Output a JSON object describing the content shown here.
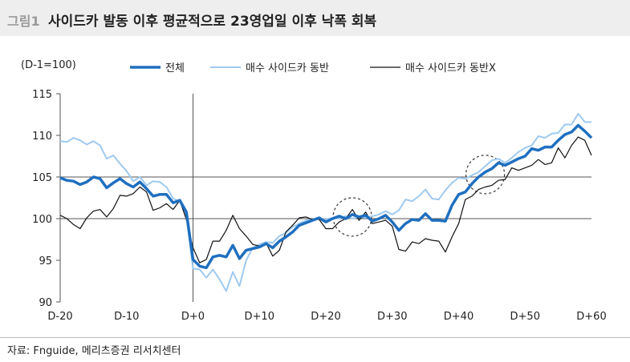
{
  "header": {
    "figure_number": "그림1",
    "title": "사이드카 발동 이후 평균적으로 23영업일 이후 낙폭 회복"
  },
  "source": "자료: Fnguide, 메리츠증권 리서치센터",
  "chart_data": {
    "type": "line",
    "unit_label": "(D-1=100)",
    "xlabel": "",
    "ylabel": "",
    "xlim": [
      -20,
      60
    ],
    "ylim": [
      90,
      115
    ],
    "yticks": [
      90,
      95,
      100,
      105,
      110,
      115
    ],
    "xticks": [
      {
        "value": -20,
        "label": "D-20"
      },
      {
        "value": -10,
        "label": "D-10"
      },
      {
        "value": 0,
        "label": "D+0"
      },
      {
        "value": 10,
        "label": "D+10"
      },
      {
        "value": 20,
        "label": "D+20"
      },
      {
        "value": 30,
        "label": "D+30"
      },
      {
        "value": 40,
        "label": "D+40"
      },
      {
        "value": 50,
        "label": "D+50"
      },
      {
        "value": 60,
        "label": "D+60"
      }
    ],
    "reference_lines": [
      {
        "axis": "y",
        "value": 100
      },
      {
        "axis": "y",
        "value": 105
      },
      {
        "axis": "x",
        "value": 0
      }
    ],
    "legend_position": "top",
    "series": [
      {
        "name": "전체",
        "color": "#1f6fbf",
        "x": [
          -20,
          -19,
          -18,
          -17,
          -16,
          -15,
          -14,
          -13,
          -12,
          -11,
          -10,
          -9,
          -8,
          -7,
          -6,
          -5,
          -4,
          -3,
          -2,
          -1,
          0,
          1,
          2,
          3,
          4,
          5,
          6,
          7,
          8,
          9,
          10,
          11,
          12,
          13,
          14,
          15,
          16,
          17,
          18,
          19,
          20,
          21,
          22,
          23,
          24,
          25,
          26,
          27,
          28,
          29,
          30,
          31,
          32,
          33,
          34,
          35,
          36,
          37,
          38,
          39,
          40,
          41,
          42,
          43,
          44,
          45,
          46,
          47,
          48,
          49,
          50,
          51,
          52,
          53,
          54,
          55,
          56,
          57,
          58,
          59,
          60
        ],
        "values": [
          104.9,
          104.6,
          104.5,
          104.1,
          104.4,
          105.0,
          104.8,
          103.7,
          104.3,
          104.8,
          104.2,
          103.8,
          104.4,
          103.6,
          102.7,
          102.9,
          102.9,
          101.9,
          102.2,
          100.8,
          95.1,
          94.3,
          94.1,
          95.4,
          95.6,
          95.4,
          96.8,
          95.2,
          96.2,
          96.4,
          96.6,
          97.0,
          96.5,
          97.3,
          97.8,
          98.4,
          99.2,
          99.5,
          99.8,
          100.1,
          99.6,
          100.0,
          100.3,
          100.0,
          100.5,
          100.2,
          100.4,
          99.7,
          100.0,
          100.4,
          99.6,
          98.6,
          99.4,
          99.9,
          99.8,
          100.6,
          99.8,
          99.8,
          99.7,
          101.6,
          102.9,
          103.2,
          104.2,
          105.0,
          105.6,
          106.0,
          106.7,
          106.4,
          106.8,
          107.2,
          107.5,
          108.4,
          108.2,
          108.6,
          108.6,
          109.4,
          110.1,
          110.4,
          111.2,
          110.5,
          109.7
        ]
      },
      {
        "name": "매수 사이드카 동반",
        "color": "#9fcaf0",
        "x": [
          -20,
          -19,
          -18,
          -17,
          -16,
          -15,
          -14,
          -13,
          -12,
          -11,
          -10,
          -9,
          -8,
          -7,
          -6,
          -5,
          -4,
          -3,
          -2,
          -1,
          0,
          1,
          2,
          3,
          4,
          5,
          6,
          7,
          8,
          9,
          10,
          11,
          12,
          13,
          14,
          15,
          16,
          17,
          18,
          19,
          20,
          21,
          22,
          23,
          24,
          25,
          26,
          27,
          28,
          29,
          30,
          31,
          32,
          33,
          34,
          35,
          36,
          37,
          38,
          39,
          40,
          41,
          42,
          43,
          44,
          45,
          46,
          47,
          48,
          49,
          50,
          51,
          52,
          53,
          54,
          55,
          56,
          57,
          58,
          59,
          60
        ],
        "values": [
          109.3,
          109.2,
          109.7,
          109.4,
          108.9,
          109.3,
          108.8,
          107.2,
          107.6,
          106.6,
          105.7,
          104.5,
          105.0,
          104.0,
          104.5,
          104.4,
          103.8,
          102.4,
          102.1,
          100.3,
          94.0,
          93.9,
          92.9,
          93.9,
          92.7,
          91.3,
          93.6,
          91.9,
          95.0,
          96.5,
          96.9,
          97.2,
          97.1,
          97.9,
          98.3,
          99.0,
          99.4,
          99.8,
          99.9,
          100.0,
          99.9,
          100.1,
          100.0,
          100.3,
          100.0,
          100.2,
          100.1,
          100.3,
          100.5,
          100.9,
          100.5,
          101.0,
          102.3,
          102.1,
          102.7,
          103.5,
          102.4,
          102.3,
          103.4,
          104.3,
          104.9,
          104.8,
          105.2,
          105.6,
          106.3,
          107.0,
          107.2,
          106.7,
          107.3,
          108.0,
          108.5,
          108.8,
          109.9,
          109.7,
          110.2,
          110.3,
          111.3,
          111.3,
          112.6,
          111.6,
          111.6
        ]
      },
      {
        "name": "매수 사이드카 동반X",
        "color": "#111111",
        "x": [
          -20,
          -19,
          -18,
          -17,
          -16,
          -15,
          -14,
          -13,
          -12,
          -11,
          -10,
          -9,
          -8,
          -7,
          -6,
          -5,
          -4,
          -3,
          -2,
          -1,
          0,
          1,
          2,
          3,
          4,
          5,
          6,
          7,
          8,
          9,
          10,
          11,
          12,
          13,
          14,
          15,
          16,
          17,
          18,
          19,
          20,
          21,
          22,
          23,
          24,
          25,
          26,
          27,
          28,
          29,
          30,
          31,
          32,
          33,
          34,
          35,
          36,
          37,
          38,
          39,
          40,
          41,
          42,
          43,
          44,
          45,
          46,
          47,
          48,
          49,
          50,
          51,
          52,
          53,
          54,
          55,
          56,
          57,
          58,
          59,
          60
        ],
        "values": [
          100.4,
          100.0,
          99.3,
          98.8,
          100.1,
          100.9,
          101.1,
          100.2,
          101.2,
          102.8,
          102.7,
          103.0,
          103.8,
          103.2,
          101.0,
          101.3,
          101.8,
          101.1,
          102.2,
          99.9,
          96.5,
          94.7,
          95.1,
          97.3,
          97.3,
          98.6,
          100.4,
          98.8,
          97.9,
          96.9,
          96.7,
          97.1,
          95.5,
          96.2,
          98.4,
          99.2,
          100.1,
          100.2,
          99.9,
          99.9,
          98.8,
          98.8,
          99.6,
          100.0,
          101.1,
          99.8,
          100.8,
          99.4,
          99.6,
          99.8,
          99.1,
          96.3,
          96.1,
          97.2,
          97.0,
          97.6,
          97.4,
          97.3,
          96.0,
          97.8,
          99.4,
          102.3,
          102.7,
          103.5,
          103.8,
          104.0,
          104.6,
          104.7,
          106.1,
          105.8,
          106.1,
          106.4,
          107.1,
          106.5,
          106.7,
          108.5,
          107.3,
          108.8,
          109.8,
          109.4,
          107.6
        ]
      }
    ]
  }
}
